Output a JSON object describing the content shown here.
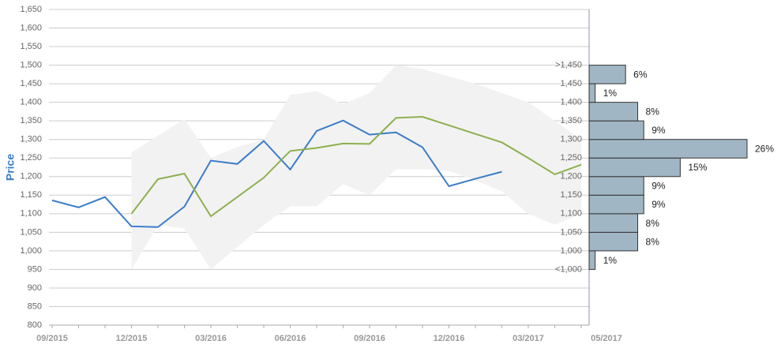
{
  "chart_data": [
    {
      "type": "line",
      "y_label": "Price",
      "categories": [
        "09/2015",
        null,
        null,
        "12/2015",
        null,
        null,
        "03/2016",
        null,
        null,
        "06/2016",
        null,
        null,
        "09/2016",
        null,
        null,
        "12/2016",
        null,
        null,
        "03/2017",
        null,
        "05/2017"
      ],
      "series": [
        {
          "color": "#3a7cc9",
          "values": [
            1136,
            1117,
            1145,
            1066,
            1064,
            1119,
            1243,
            1234,
            1296,
            1219,
            1323,
            1351,
            1313,
            1319,
            1279,
            1174,
            1194,
            1213,
            null,
            null,
            null
          ]
        },
        {
          "color": "#8db04e",
          "values": [
            null,
            null,
            null,
            1100,
            1193,
            1208,
            1093,
            1145,
            1197,
            1269,
            1277,
            1289,
            1288,
            1358,
            1361,
            1338,
            1315,
            1292,
            1250,
            1206,
            1232
          ]
        }
      ],
      "band": {
        "color": "#f2f2f2",
        "high": [
          null,
          null,
          null,
          1265,
          1310,
          1355,
          1250,
          1280,
          1300,
          1420,
          1430,
          1395,
          1425,
          1500,
          1490,
          1470,
          1450,
          1425,
          1400,
          1350,
          1300
        ],
        "low": [
          null,
          null,
          null,
          950,
          1070,
          1060,
          950,
          1010,
          1070,
          1120,
          1120,
          1180,
          1150,
          1220,
          1220,
          1215,
          1190,
          1160,
          1100,
          1070,
          1100
        ]
      },
      "ylim": [
        800,
        1650
      ],
      "yticks": [
        800,
        850,
        900,
        950,
        {
          "value": 1000,
          "label": "1,000"
        },
        {
          "value": 1050,
          "label": "1,050"
        },
        {
          "value": 1100,
          "label": "1,100"
        },
        {
          "value": 1150,
          "label": "1,150"
        },
        {
          "value": 1200,
          "label": "1,200"
        },
        {
          "value": 1250,
          "label": "1,250"
        },
        {
          "value": 1300,
          "label": "1,300"
        },
        {
          "value": 1350,
          "label": "1,350"
        },
        {
          "value": 1400,
          "label": "1,400"
        },
        {
          "value": 1450,
          "label": "1,450"
        },
        {
          "value": 1500,
          "label": "1,500"
        },
        {
          "value": 1550,
          "label": "1,550"
        },
        {
          "value": 1600,
          "label": "1,600"
        },
        {
          "value": 1650,
          "label": "1,650"
        }
      ],
      "grid": true
    },
    {
      "type": "histogram",
      "orientation": "horizontal",
      "color": "#a1b6c4",
      "bins": [
        950,
        1000,
        1050,
        1100,
        1150,
        1200,
        1250,
        1300,
        1350,
        1400,
        1450,
        1500
      ],
      "values": [
        1,
        8,
        8,
        9,
        9,
        15,
        26,
        9,
        8,
        1,
        6
      ],
      "value_labels": [
        "1%",
        "8%",
        "8%",
        "9%",
        "9%",
        "15%",
        "26%",
        "9%",
        "8%",
        "1%",
        "6%"
      ],
      "ylim": [
        800,
        1650
      ],
      "yticks": [
        {
          "value": 950,
          "label": "<1,000"
        },
        {
          "value": 1000,
          "label": "1,000"
        },
        {
          "value": 1050,
          "label": "1,050"
        },
        {
          "value": 1100,
          "label": "1,100"
        },
        {
          "value": 1150,
          "label": "1,150"
        },
        {
          "value": 1200,
          "label": "1,200"
        },
        {
          "value": 1250,
          "label": "1,250"
        },
        {
          "value": 1300,
          "label": "1,300"
        },
        {
          "value": 1350,
          "label": "1,350"
        },
        {
          "value": 1400,
          "label": "1,400"
        },
        {
          "value": 1450,
          "label": "1,450"
        },
        {
          "value": 1500,
          "label": ">1,450"
        }
      ]
    }
  ]
}
